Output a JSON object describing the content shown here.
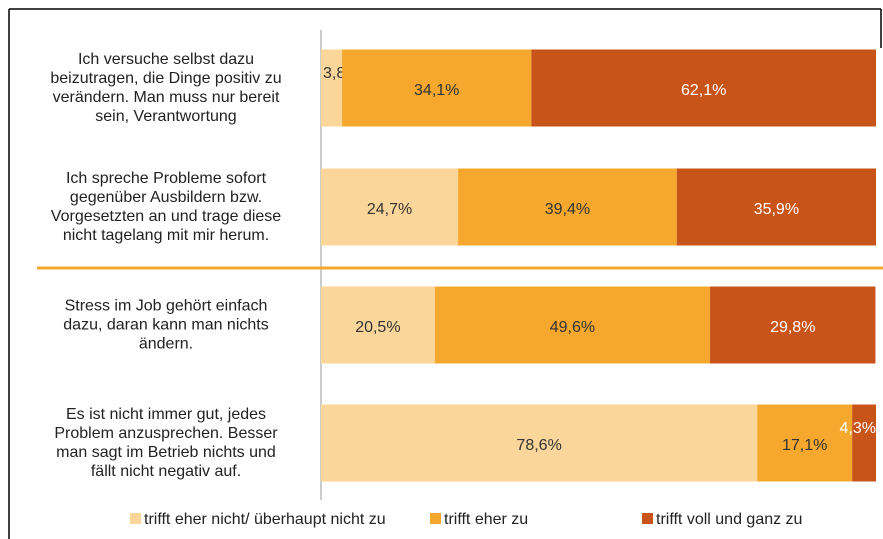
{
  "chart_data": {
    "type": "stacked-bar-horizontal",
    "categories": [
      "Ich versuche selbst dazu\nbeizutragen, die Dinge positiv zu\nverändern. Man muss nur bereit\nsein, Verantwortung",
      "Ich spreche Probleme sofort\ngegenüber Ausbildern bzw.\nVorgesetzten an und trage diese\nnicht tagelang mit mir herum.",
      "Stress im Job gehört einfach\ndazu, daran kann man nichts\nändern.",
      "Es ist nicht immer gut, jedes\nProblem anzusprechen. Besser\nman sagt im Betrieb nichts und\nfällt nicht negativ auf."
    ],
    "series": [
      {
        "name": "trifft eher nicht/ überhaupt nicht zu",
        "color": "#fad69a",
        "values": [
          3.8,
          24.7,
          20.5,
          78.6
        ],
        "value_labels": [
          "3,8%",
          "24,7%",
          "20,5%",
          "78,6%"
        ]
      },
      {
        "name": "trifft eher zu",
        "color": "#f5a72e",
        "values": [
          34.1,
          39.4,
          49.6,
          17.1
        ],
        "value_labels": [
          "34,1%",
          "39,4%",
          "49,6%",
          "17,1%"
        ]
      },
      {
        "name": "trifft voll und ganz zu",
        "color": "#c9541a",
        "values": [
          62.1,
          35.9,
          29.8,
          4.3
        ],
        "value_labels": [
          "62,1%",
          "35,9%",
          "29,8%",
          "4,3%"
        ]
      }
    ],
    "xlim": [
      0,
      100
    ],
    "legend": "bottom"
  }
}
